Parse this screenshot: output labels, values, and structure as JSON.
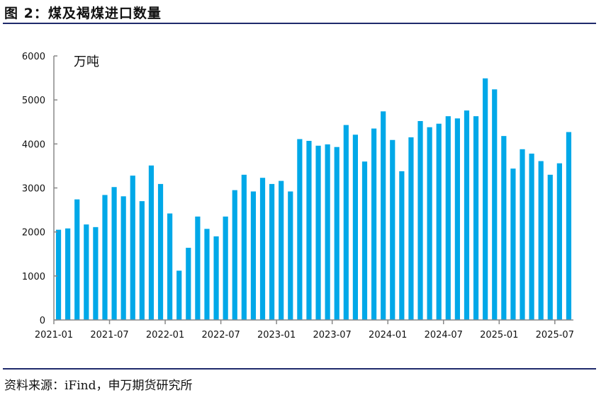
{
  "header": {
    "title": "图 2：煤及褐煤进口数量"
  },
  "footer": {
    "source": "资料来源：iFind，申万期货研究所"
  },
  "chart_data": {
    "type": "bar",
    "title": "煤及褐煤进口数量",
    "ylabel": "万吨",
    "unit_label": "万吨",
    "ylim": [
      0,
      6000
    ],
    "yticks": [
      0,
      1000,
      2000,
      3000,
      4000,
      5000,
      6000
    ],
    "xtick_labels": [
      "2021-01",
      "2021-07",
      "2022-01",
      "2022-07",
      "2023-01",
      "2023-07",
      "2024-01",
      "2024-07",
      "2025-01",
      "2025-07"
    ],
    "bar_color": "#00a8e8",
    "categories": [
      "2021-01",
      "2021-02",
      "2021-03",
      "2021-04",
      "2021-05",
      "2021-06",
      "2021-07",
      "2021-08",
      "2021-09",
      "2021-10",
      "2021-11",
      "2021-12",
      "2022-01",
      "2022-02",
      "2022-03",
      "2022-04",
      "2022-05",
      "2022-06",
      "2022-07",
      "2022-08",
      "2022-09",
      "2022-10",
      "2022-11",
      "2022-12",
      "2023-01",
      "2023-02",
      "2023-03",
      "2023-04",
      "2023-05",
      "2023-06",
      "2023-07",
      "2023-08",
      "2023-09",
      "2023-10",
      "2023-11",
      "2023-12",
      "2024-01",
      "2024-02",
      "2024-03",
      "2024-04",
      "2024-05",
      "2024-06",
      "2024-07",
      "2024-08",
      "2024-09",
      "2024-10",
      "2024-11",
      "2024-12",
      "2025-01",
      "2025-02",
      "2025-03",
      "2025-04",
      "2025-05",
      "2025-06",
      "2025-07",
      "2025-08"
    ],
    "values": [
      2050,
      2080,
      2740,
      2170,
      2110,
      2840,
      3020,
      2810,
      3280,
      2700,
      3510,
      3090,
      2420,
      1120,
      1640,
      2350,
      2070,
      1900,
      2350,
      2950,
      3300,
      2920,
      3230,
      3090,
      3160,
      2920,
      4110,
      4070,
      3960,
      3990,
      3930,
      4430,
      4210,
      3600,
      4350,
      4740,
      4090,
      3380,
      4150,
      4520,
      4380,
      4460,
      4630,
      4580,
      4760,
      4630,
      5490,
      5240,
      4180,
      3440,
      3880,
      3780,
      3610,
      3300,
      3560,
      4270
    ]
  }
}
